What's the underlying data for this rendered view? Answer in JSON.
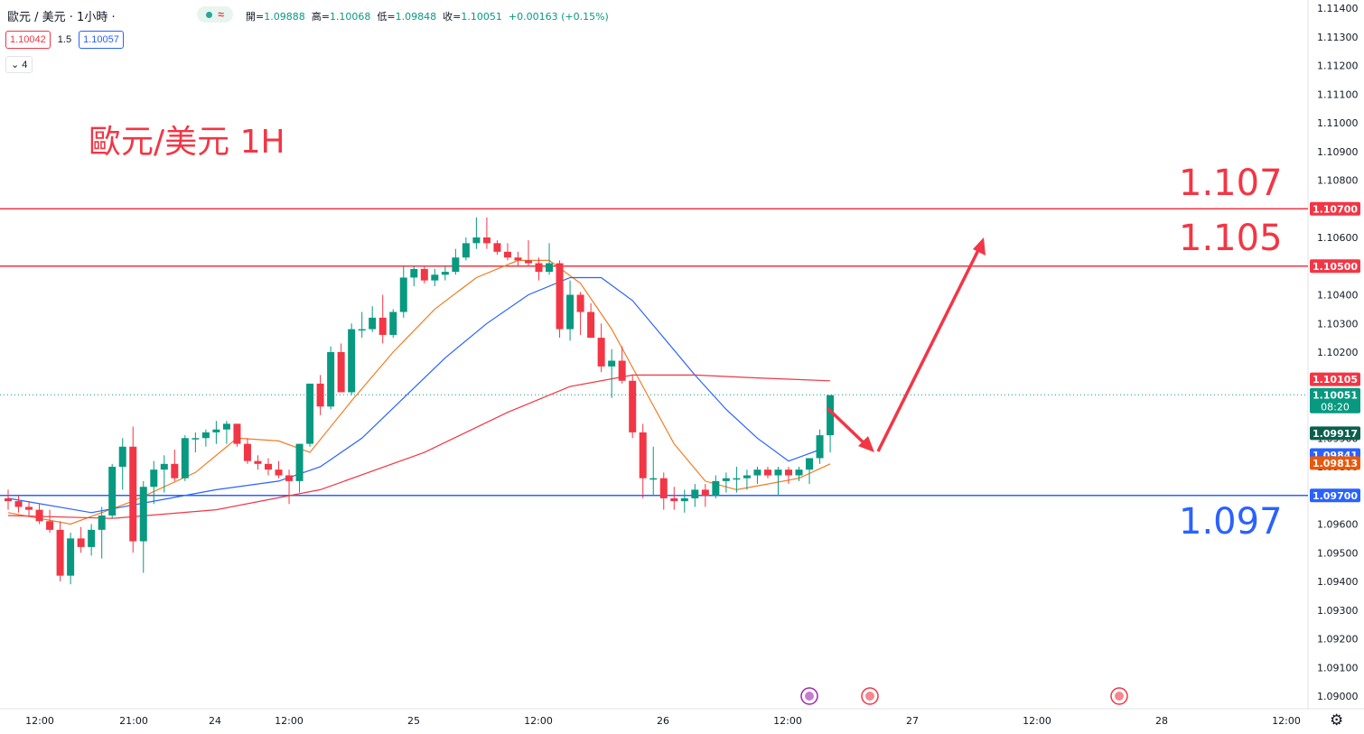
{
  "header": {
    "symbol": "歐元 / 美元 · 1小時 ·",
    "ohlc": {
      "open_label": "開=",
      "open": "1.09888",
      "high_label": "高=",
      "high": "1.10068",
      "low_label": "低=",
      "low": "1.09848",
      "close_label": "收=",
      "close": "1.10051",
      "change": "+0.00163 (+0.15%)"
    },
    "pill_icon": "approx-icon",
    "approx_glyph": "≈",
    "bid": "1.10042",
    "spread": "1.5",
    "ask": "1.10057",
    "indicators_count": "4"
  },
  "annotation": {
    "title": "歐元/美元 1H",
    "levels": [
      {
        "text": "1.107",
        "color": "#f23645"
      },
      {
        "text": "1.105",
        "color": "#f23645"
      },
      {
        "text": "1.097",
        "color": "#2962ff"
      }
    ]
  },
  "colors": {
    "up": "#089981",
    "down": "#f23645",
    "ma_short": "#f07d22",
    "ma_mid": "#2962ff",
    "ma_long": "#f23645"
  },
  "chart_data": {
    "type": "candlestick",
    "y_range": [
      1.09,
      1.114
    ],
    "y_ticks": [
      "1.11400",
      "1.11300",
      "1.11200",
      "1.11100",
      "1.11000",
      "1.10900",
      "1.10800",
      "1.10700",
      "1.10600",
      "1.10500",
      "1.10400",
      "1.10300",
      "1.10200",
      "1.10100",
      "1.10000",
      "1.09900",
      "1.09800",
      "1.09700",
      "1.09600",
      "1.09500",
      "1.09400",
      "1.09300",
      "1.09200",
      "1.09100",
      "1.09000"
    ],
    "x_ticks": [
      "12:00",
      "21:00",
      "24",
      "12:00",
      "25",
      "12:00",
      "26",
      "12:00",
      "27",
      "12:00",
      "28",
      "12:00"
    ],
    "candles": [
      [
        1.0969,
        1.0972,
        1.0965,
        1.0968
      ],
      [
        1.0968,
        1.097,
        1.0964,
        1.0966
      ],
      [
        1.0966,
        1.0968,
        1.0963,
        1.0965
      ],
      [
        1.0965,
        1.0967,
        1.096,
        1.0961
      ],
      [
        1.0961,
        1.0965,
        1.0957,
        1.0958
      ],
      [
        1.0958,
        1.0961,
        1.094,
        1.0942
      ],
      [
        1.0942,
        1.0957,
        1.0939,
        1.0955
      ],
      [
        1.0955,
        1.0959,
        1.095,
        1.0952
      ],
      [
        1.0952,
        1.096,
        1.0949,
        1.0958
      ],
      [
        1.0958,
        1.0966,
        1.0948,
        1.0963
      ],
      [
        1.0963,
        1.0981,
        1.0962,
        1.098
      ],
      [
        1.098,
        1.099,
        1.0972,
        1.0987
      ],
      [
        1.0987,
        1.0994,
        1.095,
        1.0954
      ],
      [
        1.0954,
        1.0975,
        1.0943,
        1.0973
      ],
      [
        1.0973,
        1.0982,
        1.0967,
        1.0979
      ],
      [
        1.0979,
        1.0984,
        1.0971,
        1.0981
      ],
      [
        1.0981,
        1.0986,
        1.0975,
        1.0976
      ],
      [
        1.0976,
        1.0991,
        1.0975,
        1.099
      ],
      [
        1.099,
        1.0992,
        1.0985,
        1.099
      ],
      [
        1.099,
        1.0993,
        1.0987,
        1.0992
      ],
      [
        1.0992,
        1.0996,
        1.0988,
        1.0993
      ],
      [
        1.0993,
        1.0996,
        1.0988,
        1.0995
      ],
      [
        1.0995,
        1.0995,
        1.0987,
        1.0988
      ],
      [
        1.0988,
        1.099,
        1.0981,
        1.0982
      ],
      [
        1.0982,
        1.0984,
        1.0979,
        1.0981
      ],
      [
        1.0981,
        1.0983,
        1.0977,
        1.0979
      ],
      [
        1.0979,
        1.0982,
        1.0976,
        1.0977
      ],
      [
        1.0977,
        1.0979,
        1.0967,
        1.0975
      ],
      [
        1.0975,
        1.0988,
        1.0971,
        1.0988
      ],
      [
        1.0988,
        1.1009,
        1.0987,
        1.1009
      ],
      [
        1.1009,
        1.1012,
        1.0998,
        1.1001
      ],
      [
        1.1001,
        1.1022,
        1.1,
        1.102
      ],
      [
        1.102,
        1.1023,
        1.1006,
        1.1006
      ],
      [
        1.1006,
        1.103,
        1.1005,
        1.1028
      ],
      [
        1.1028,
        1.1034,
        1.1025,
        1.1028
      ],
      [
        1.1028,
        1.1036,
        1.1027,
        1.1032
      ],
      [
        1.1032,
        1.104,
        1.1023,
        1.1026
      ],
      [
        1.1026,
        1.1035,
        1.1025,
        1.1034
      ],
      [
        1.1034,
        1.105,
        1.1032,
        1.1046
      ],
      [
        1.1046,
        1.105,
        1.1043,
        1.1049
      ],
      [
        1.1049,
        1.105,
        1.1044,
        1.1045
      ],
      [
        1.1045,
        1.1049,
        1.1043,
        1.1047
      ],
      [
        1.1047,
        1.105,
        1.1045,
        1.1048
      ],
      [
        1.1048,
        1.1056,
        1.1047,
        1.1053
      ],
      [
        1.1053,
        1.106,
        1.1052,
        1.1058
      ],
      [
        1.1058,
        1.1067,
        1.1056,
        1.106
      ],
      [
        1.106,
        1.1067,
        1.1056,
        1.1058
      ],
      [
        1.1058,
        1.1059,
        1.1054,
        1.1055
      ],
      [
        1.1055,
        1.1058,
        1.1052,
        1.1053
      ],
      [
        1.1053,
        1.1055,
        1.105,
        1.1052
      ],
      [
        1.1052,
        1.1059,
        1.105,
        1.1051
      ],
      [
        1.1051,
        1.1053,
        1.1045,
        1.1048
      ],
      [
        1.1048,
        1.1058,
        1.1047,
        1.1051
      ],
      [
        1.1051,
        1.1052,
        1.1025,
        1.1028
      ],
      [
        1.1028,
        1.1045,
        1.1024,
        1.104
      ],
      [
        1.104,
        1.1041,
        1.1026,
        1.1034
      ],
      [
        1.1034,
        1.1037,
        1.1025,
        1.1025
      ],
      [
        1.1025,
        1.103,
        1.1013,
        1.1015
      ],
      [
        1.1015,
        1.1021,
        1.1004,
        1.1017
      ],
      [
        1.1017,
        1.1022,
        1.1009,
        1.101
      ],
      [
        1.101,
        1.1012,
        1.099,
        1.0992
      ],
      [
        1.0992,
        1.0995,
        1.0969,
        1.0976
      ],
      [
        1.0976,
        1.0987,
        1.097,
        1.0976
      ],
      [
        1.0976,
        1.0978,
        1.0965,
        1.0969
      ],
      [
        1.0969,
        1.0973,
        1.0965,
        1.0968
      ],
      [
        1.0968,
        1.0972,
        1.0964,
        1.0969
      ],
      [
        1.0969,
        1.0974,
        1.0966,
        1.0972
      ],
      [
        1.0972,
        1.0974,
        1.0966,
        1.097
      ],
      [
        1.097,
        1.0977,
        1.0969,
        1.0975
      ],
      [
        1.0975,
        1.0978,
        1.0971,
        1.0976
      ],
      [
        1.0976,
        1.098,
        1.0971,
        1.0976
      ],
      [
        1.0976,
        1.0979,
        1.0972,
        1.0977
      ],
      [
        1.0977,
        1.098,
        1.0974,
        1.0979
      ],
      [
        1.0979,
        1.098,
        1.0976,
        1.0977
      ],
      [
        1.0977,
        1.098,
        1.097,
        1.0979
      ],
      [
        1.0979,
        1.098,
        1.0974,
        1.0977
      ],
      [
        1.0977,
        1.098,
        1.0975,
        1.0979
      ],
      [
        1.0979,
        1.0983,
        1.0974,
        1.0983
      ],
      [
        1.0983,
        1.0993,
        1.0981,
        1.0991
      ],
      [
        1.0991,
        1.1005,
        1.0985,
        1.1005
      ]
    ],
    "moving_averages": [
      {
        "color": "#f07d22",
        "points": [
          [
            0,
            1.0964
          ],
          [
            6,
            1.096
          ],
          [
            12,
            1.0968
          ],
          [
            18,
            1.0978
          ],
          [
            22,
            1.099
          ],
          [
            26,
            1.0989
          ],
          [
            29,
            1.0985
          ],
          [
            33,
            1.1003
          ],
          [
            37,
            1.102
          ],
          [
            41,
            1.1035
          ],
          [
            45,
            1.1046
          ],
          [
            49,
            1.1052
          ],
          [
            52,
            1.1052
          ],
          [
            55,
            1.1044
          ],
          [
            58,
            1.1028
          ],
          [
            61,
            1.1008
          ],
          [
            64,
            1.0988
          ],
          [
            67,
            1.0975
          ],
          [
            70,
            1.0972
          ],
          [
            73,
            1.0974
          ],
          [
            76,
            1.0976
          ],
          [
            79,
            1.0981
          ]
        ]
      },
      {
        "color": "#2962ff",
        "points": [
          [
            0,
            1.0969
          ],
          [
            8,
            1.0964
          ],
          [
            14,
            1.0968
          ],
          [
            20,
            1.0972
          ],
          [
            26,
            1.0975
          ],
          [
            30,
            1.098
          ],
          [
            34,
            1.099
          ],
          [
            38,
            1.1004
          ],
          [
            42,
            1.1018
          ],
          [
            46,
            1.103
          ],
          [
            50,
            1.104
          ],
          [
            54,
            1.1046
          ],
          [
            57,
            1.1046
          ],
          [
            60,
            1.1038
          ],
          [
            63,
            1.1025
          ],
          [
            66,
            1.1012
          ],
          [
            69,
            1.1
          ],
          [
            72,
            1.099
          ],
          [
            75,
            1.0982
          ],
          [
            78,
            1.0986
          ]
        ]
      },
      {
        "color": "#f23645",
        "points": [
          [
            0,
            1.0963
          ],
          [
            10,
            1.0962
          ],
          [
            20,
            1.0965
          ],
          [
            30,
            1.0972
          ],
          [
            40,
            1.0985
          ],
          [
            48,
            1.0999
          ],
          [
            54,
            1.1008
          ],
          [
            60,
            1.1012
          ],
          [
            66,
            1.1012
          ],
          [
            72,
            1.1011
          ],
          [
            79,
            1.101
          ]
        ]
      }
    ],
    "horizontal_lines": [
      {
        "value": 1.107,
        "color": "#f23645"
      },
      {
        "value": 1.105,
        "color": "#f23645"
      },
      {
        "value": 1.097,
        "color": "#2962ff"
      }
    ],
    "price_labels": [
      {
        "value": 1.107,
        "text": "1.10700",
        "bg": "#f23645"
      },
      {
        "value": 1.105,
        "text": "1.10500",
        "bg": "#f23645"
      },
      {
        "value": 1.10105,
        "text": "1.10105",
        "bg": "#f23645"
      },
      {
        "value": 1.10051,
        "text": "1.10051",
        "sub": "08:20",
        "bg": "#089981"
      },
      {
        "value": 1.09917,
        "text": "1.09917",
        "bg": "#0b5f4d"
      },
      {
        "value": 1.09841,
        "text": "1.09841",
        "bg": "#2962ff"
      },
      {
        "value": 1.09813,
        "text": "1.09813",
        "bg": "#e8590c"
      },
      {
        "value": 1.097,
        "text": "1.09700",
        "bg": "#2962ff"
      }
    ],
    "last_price": 1.10051
  }
}
